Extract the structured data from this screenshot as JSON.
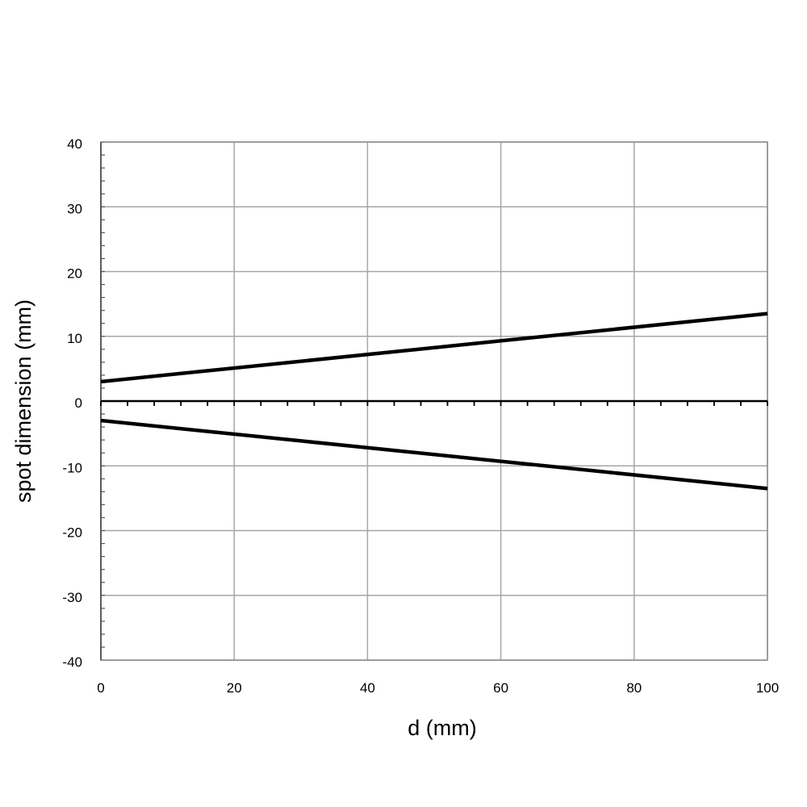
{
  "chart_data": {
    "type": "line",
    "title": "",
    "xlabel": "d (mm)",
    "ylabel": "spot dimension (mm)",
    "xlim": [
      0,
      100
    ],
    "ylim": [
      -40,
      40
    ],
    "x_ticks": [
      0,
      20,
      40,
      60,
      80,
      100
    ],
    "y_ticks": [
      40,
      30,
      20,
      10,
      0,
      -10,
      -20,
      -30,
      -40
    ],
    "x_tick_labels": [
      "0",
      "20",
      "40",
      "60",
      "80",
      "100"
    ],
    "y_tick_labels": [
      "40",
      "30",
      "20",
      "10",
      "0",
      "-10",
      "-20",
      "-30",
      "-40"
    ],
    "grid": true,
    "legend": "none",
    "series": [
      {
        "x": [
          0,
          100
        ],
        "y": [
          3,
          13.5
        ],
        "color": "#000000"
      },
      {
        "x": [
          0,
          100
        ],
        "y": [
          -3,
          -13.5
        ],
        "color": "#000000"
      }
    ]
  }
}
